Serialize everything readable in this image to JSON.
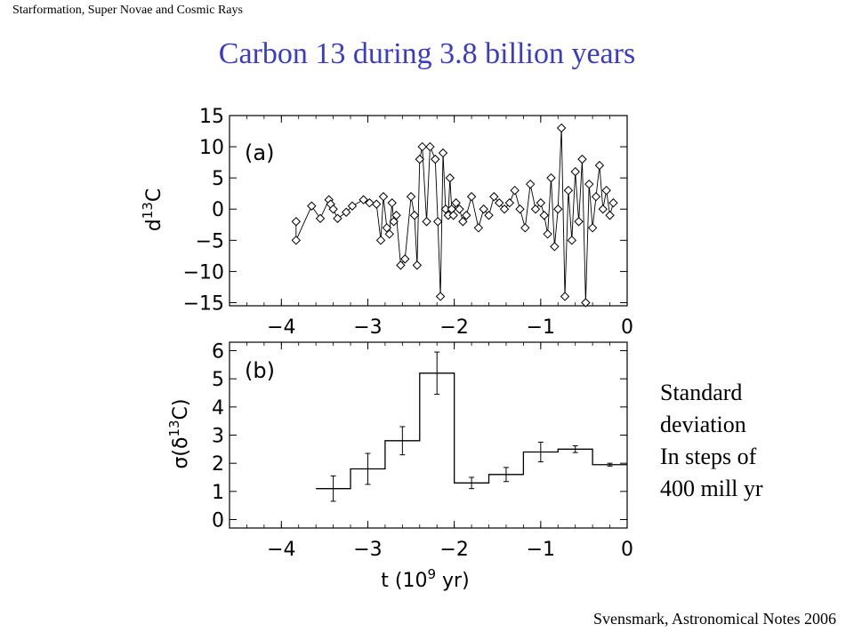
{
  "header": "Starformation, Super Novae and Cosmic Rays",
  "title": "Carbon 13 during 3.8 billion years",
  "side_note": [
    "Standard",
    "deviation",
    "In steps of",
    "400 mill yr"
  ],
  "footer": "Svensmark, Astronomical Notes 2006",
  "chart_data": [
    {
      "type": "line",
      "panel_label": "(a)",
      "ylabel": "d13C",
      "xlim": [
        -4.6,
        0
      ],
      "ylim": [
        -15.5,
        15
      ],
      "xticks": [
        -4,
        -3,
        -2,
        -1,
        0
      ],
      "xtick_labels": [
        "−4",
        "−3",
        "−2",
        "−1",
        "0"
      ],
      "yticks": [
        15,
        10,
        5,
        0,
        -5,
        -10,
        -15
      ],
      "ytick_labels": [
        "15",
        "10",
        "5",
        "0",
        "−5",
        "−10",
        "−15"
      ],
      "series": [
        {
          "marker": "diamond",
          "x": [
            -3.83,
            -3.83,
            -3.65,
            -3.55,
            -3.45,
            -3.43,
            -3.4,
            -3.35,
            -3.25,
            -3.18,
            -3.05,
            -2.98,
            -2.9,
            -2.85,
            -2.82,
            -2.78,
            -2.75,
            -2.72,
            -2.7,
            -2.67,
            -2.62,
            -2.57,
            -2.5,
            -2.46,
            -2.43,
            -2.4,
            -2.37,
            -2.32,
            -2.28,
            -2.22,
            -2.19,
            -2.16,
            -2.13,
            -2.1,
            -2.07,
            -2.05,
            -2.03,
            -2.01,
            -1.98,
            -1.94,
            -1.9,
            -1.86,
            -1.8,
            -1.72,
            -1.66,
            -1.6,
            -1.54,
            -1.48,
            -1.42,
            -1.36,
            -1.3,
            -1.24,
            -1.18,
            -1.12,
            -1.06,
            -1.0,
            -0.96,
            -0.92,
            -0.88,
            -0.84,
            -0.8,
            -0.76,
            -0.72,
            -0.68,
            -0.64,
            -0.6,
            -0.56,
            -0.52,
            -0.48,
            -0.44,
            -0.4,
            -0.36,
            -0.32,
            -0.28,
            -0.24,
            -0.2,
            -0.16
          ],
          "y": [
            -2,
            -5,
            0.5,
            -1.5,
            1.5,
            0.8,
            0,
            -1.5,
            -0.5,
            0.5,
            1.5,
            1,
            0.8,
            -5,
            2,
            -3,
            -4,
            1,
            -2,
            -1,
            -9,
            -8,
            2,
            -1,
            -9,
            8,
            10,
            -2,
            10,
            8,
            -2,
            -14,
            9,
            0,
            -1,
            5,
            0,
            -1,
            1,
            0,
            -2,
            -1,
            2,
            -3,
            0,
            -1,
            2,
            1,
            0,
            1,
            3,
            0,
            -3,
            4,
            0,
            1,
            -1,
            -4,
            5,
            -6,
            0,
            13,
            -14,
            3,
            -5,
            6,
            -2,
            8,
            -15,
            4,
            -3,
            2,
            7,
            0,
            3,
            -1,
            1
          ],
          "y_error": []
        }
      ]
    },
    {
      "type": "line",
      "panel_label": "(b)",
      "xlabel": "t  (10⁹ yr)",
      "ylabel": "σ(δ13C)",
      "xlim": [
        -4.6,
        0
      ],
      "ylim": [
        -0.3,
        6.3
      ],
      "xticks": [
        -4,
        -3,
        -2,
        -1,
        0
      ],
      "xtick_labels": [
        "−4",
        "−3",
        "−2",
        "−1",
        "0"
      ],
      "yticks": [
        0,
        1,
        2,
        3,
        4,
        5,
        6
      ],
      "ytick_labels": [
        "0",
        "1",
        "2",
        "3",
        "4",
        "5",
        "6"
      ],
      "series": [
        {
          "step": true,
          "x": [
            -3.4,
            -3.0,
            -2.6,
            -2.2,
            -1.8,
            -1.4,
            -1.0,
            -0.6,
            -0.2
          ],
          "y": [
            1.1,
            1.8,
            2.8,
            5.2,
            1.3,
            1.6,
            2.4,
            2.5,
            1.95
          ],
          "y_error": [
            0.45,
            0.55,
            0.5,
            0.75,
            0.2,
            0.25,
            0.35,
            0.12,
            0.05
          ]
        }
      ]
    }
  ]
}
